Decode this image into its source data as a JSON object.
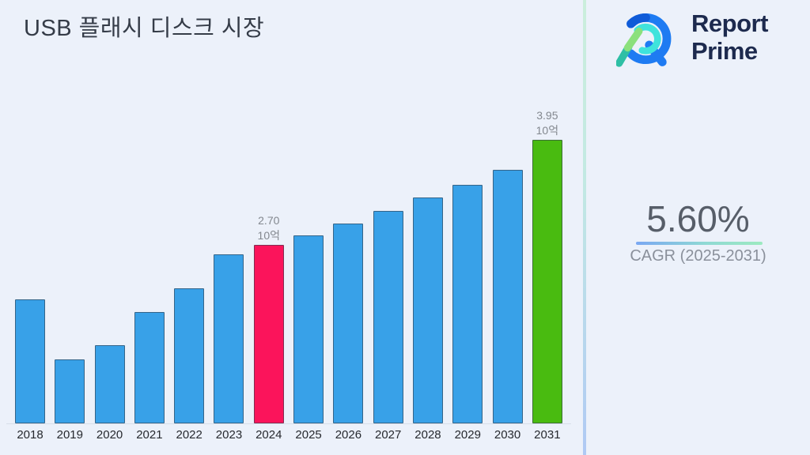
{
  "page": {
    "background": "#ECF1FA"
  },
  "header": {
    "title": "USB 플래시 디스크 시장"
  },
  "brand": {
    "logo_icon": "report-prime-logo",
    "name_line1": "Report",
    "name_line2": "Prime",
    "text_color": "#1D2A4E"
  },
  "stats": {
    "cagr_value": "5.60%",
    "cagr_label": "CAGR (2025-2031)"
  },
  "chart_data": {
    "type": "bar",
    "title": "USB 플래시 디스크 시장",
    "categories": [
      "2018",
      "2019",
      "2020",
      "2021",
      "2022",
      "2023",
      "2024",
      "2025",
      "2026",
      "2027",
      "2028",
      "2029",
      "2030",
      "2031"
    ],
    "values": [
      2.05,
      1.34,
      1.51,
      1.9,
      2.18,
      2.59,
      2.7,
      2.81,
      2.95,
      3.1,
      3.26,
      3.41,
      3.59,
      3.95
    ],
    "unit": "10억",
    "labeled_points": [
      {
        "category": "2024",
        "value_text": "2.70",
        "unit_text": "10억"
      },
      {
        "category": "2031",
        "value_text": "3.95",
        "unit_text": "10억"
      }
    ],
    "colors": {
      "default": "#38A1E8",
      "2024": "#FB145B",
      "2031": "#49BB10"
    },
    "label_color": "#83888F",
    "ylim": [
      0.575,
      4.335
    ],
    "grid": false,
    "legend": false,
    "xlabel": "",
    "ylabel": ""
  },
  "divider": {
    "gradient_top": "#CBEEDC",
    "gradient_bottom": "#AFC9F4"
  }
}
